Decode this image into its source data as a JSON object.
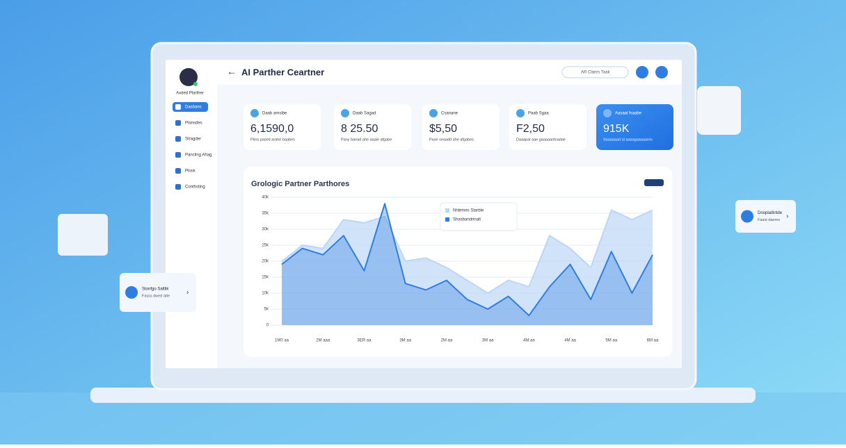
{
  "app": {
    "title": "AI Parther Ceartner",
    "user": "Axded Plarther",
    "search": "AR Clanrs Taak"
  },
  "sidebar": [
    "Dasbans",
    "Plansdes",
    "Stragder",
    "Pancling Ahag",
    "Plosk",
    "Conthsting"
  ],
  "stats": [
    {
      "label": "Daab amsibe",
      "value": "6,1590,0",
      "note": "Ptins pased arahe baabes"
    },
    {
      "label": "Daab Sagad",
      "value": "8 25.50",
      "note": "Pany baead ahe aaaie afgabe"
    },
    {
      "label": "Csanane",
      "value": "$5,50",
      "note": "Pase seaadd ahe afgabes"
    },
    {
      "label": "Paab Sgaa",
      "value": "F2,50",
      "note": "Daaapal aae gaaaaantoadae"
    },
    {
      "label": "Aasaal fsaabe",
      "value": "915K",
      "note": "Saaaaaad al aaaagaaaaares"
    }
  ],
  "chart_data": {
    "type": "area",
    "title": "Grologic Partner Parthores",
    "categories": [
      "1M0 aa",
      null,
      "2M aaa",
      null,
      "3ER aa",
      null,
      "3M aa",
      null,
      "2M aa",
      null,
      "3M aa",
      null,
      "4M aa",
      null,
      "4M aa",
      null,
      "5M aa",
      null,
      "6M aa"
    ],
    "series": [
      {
        "name": "Nhlemes Starble",
        "color": "#bcd7f6",
        "values": [
          20000,
          25000,
          24000,
          33000,
          32000,
          34000,
          20000,
          21000,
          18000,
          14000,
          10000,
          14000,
          12000,
          28000,
          24000,
          18000,
          36000,
          33000,
          36000
        ]
      },
      {
        "name": "Shasbandrinalt",
        "color": "#2f7de1",
        "values": [
          19000,
          24000,
          22000,
          28000,
          17000,
          38000,
          13000,
          11000,
          14000,
          8000,
          5000,
          9000,
          3000,
          12000,
          19000,
          8000,
          23000,
          10000,
          22000
        ]
      }
    ],
    "ylim": [
      0,
      40000
    ],
    "yticks": [
      0,
      {
        "value": 5000,
        "label": "5k"
      },
      {
        "value": 10000,
        "label": "10k"
      },
      {
        "value": 15000,
        "label": "15k"
      },
      {
        "value": 20000,
        "label": "20k"
      },
      {
        "value": 25000,
        "label": "25k"
      },
      {
        "value": 30000,
        "label": "30k"
      },
      {
        "value": 35000,
        "label": "35k"
      },
      {
        "value": 40000,
        "label": "40k"
      }
    ],
    "grid": true
  },
  "floating_cards": [
    {
      "title": "Stonfgo Saltlik",
      "subtitle": "Fasss dwed atte"
    },
    {
      "title": "Dnoplatlintde",
      "subtitle": "Faaie daeres"
    }
  ]
}
